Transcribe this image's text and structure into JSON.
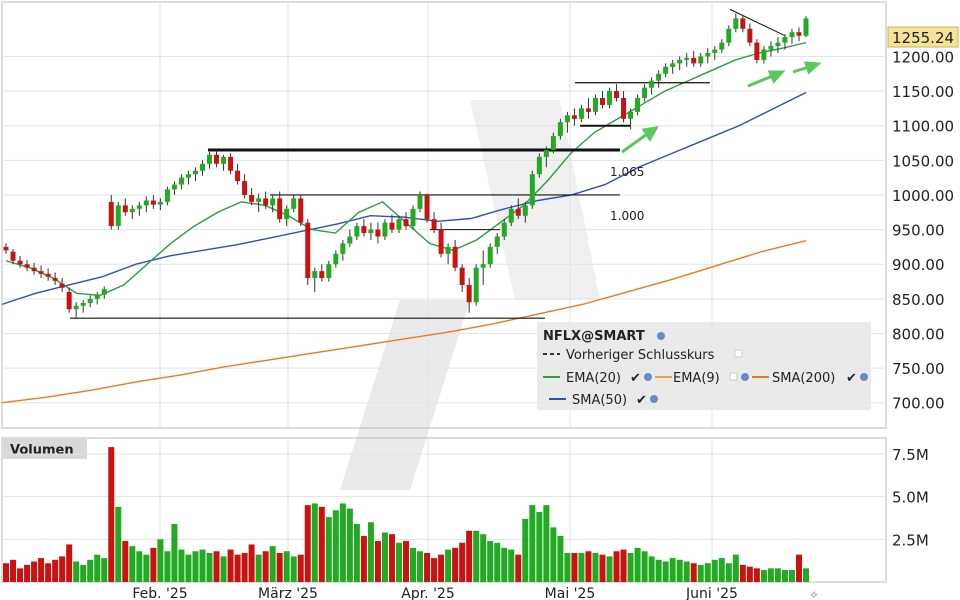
{
  "chart_data": [
    {
      "type": "candlestick",
      "title": "NFLX@SMART",
      "ylim": [
        675,
        1270
      ],
      "y_ticks": [
        "700.00",
        "750.00",
        "800.00",
        "850.00",
        "900.00",
        "950.00",
        "1000.00",
        "1050.00",
        "1100.00",
        "1150.00",
        "1200.00"
      ],
      "y_tick_values": [
        700,
        750,
        800,
        850,
        900,
        950,
        1000,
        1050,
        1100,
        1150,
        1200
      ],
      "last_price_label": "1255.24",
      "last_price": 1255.24,
      "x_labels": [
        "Feb. '25",
        "März '25",
        "Apr. '25",
        "Mai '25",
        "Juni '25"
      ],
      "legend": {
        "title": "NFLX@SMART",
        "items": [
          {
            "name": "Vorheriger Schlusskurs",
            "color": "#333333",
            "style": "dashed"
          },
          {
            "name": "EMA(20)",
            "color": "#2e9e3e"
          },
          {
            "name": "EMA(9)",
            "color": "#f0a040"
          },
          {
            "name": "SMA(200)",
            "color": "#f07820"
          },
          {
            "name": "SMA(50)",
            "color": "#2f4fbf"
          }
        ]
      },
      "annotations": [
        {
          "text": "1.065",
          "level": 1065
        },
        {
          "text": "1.000",
          "level": 1000
        }
      ],
      "horizontal_levels": [
        822,
        1000,
        1065,
        1160,
        1100
      ],
      "candles": [
        [
          925,
          930,
          915,
          920
        ],
        [
          918,
          922,
          900,
          905
        ],
        [
          905,
          912,
          895,
          900
        ],
        [
          900,
          906,
          890,
          895
        ],
        [
          895,
          902,
          885,
          890
        ],
        [
          890,
          898,
          880,
          886
        ],
        [
          886,
          894,
          876,
          882
        ],
        [
          880,
          888,
          870,
          876
        ],
        [
          872,
          880,
          860,
          866
        ],
        [
          860,
          866,
          830,
          835
        ],
        [
          835,
          845,
          822,
          840
        ],
        [
          840,
          848,
          830,
          844
        ],
        [
          844,
          855,
          838,
          850
        ],
        [
          850,
          860,
          842,
          856
        ],
        [
          856,
          868,
          850,
          864
        ],
        [
          990,
          1000,
          950,
          955
        ],
        [
          955,
          990,
          950,
          985
        ],
        [
          985,
          995,
          970,
          975
        ],
        [
          975,
          985,
          965,
          980
        ],
        [
          980,
          990,
          970,
          985
        ],
        [
          985,
          998,
          975,
          992
        ],
        [
          992,
          1000,
          980,
          986
        ],
        [
          986,
          995,
          978,
          990
        ],
        [
          990,
          1012,
          985,
          1008
        ],
        [
          1008,
          1020,
          1000,
          1015
        ],
        [
          1015,
          1030,
          1008,
          1025
        ],
        [
          1025,
          1035,
          1015,
          1030
        ],
        [
          1030,
          1040,
          1020,
          1035
        ],
        [
          1035,
          1050,
          1028,
          1045
        ],
        [
          1045,
          1062,
          1038,
          1058
        ],
        [
          1058,
          1065,
          1040,
          1045
        ],
        [
          1045,
          1058,
          1035,
          1055
        ],
        [
          1055,
          1060,
          1030,
          1035
        ],
        [
          1035,
          1045,
          1015,
          1020
        ],
        [
          1020,
          1030,
          995,
          1000
        ],
        [
          1000,
          1010,
          985,
          990
        ],
        [
          990,
          1002,
          975,
          995
        ],
        [
          995,
          1005,
          980,
          985
        ],
        [
          985,
          1000,
          975,
          995
        ],
        [
          995,
          1005,
          960,
          965
        ],
        [
          965,
          985,
          955,
          980
        ],
        [
          980,
          1000,
          975,
          995
        ],
        [
          995,
          1000,
          955,
          960
        ],
        [
          960,
          965,
          870,
          880
        ],
        [
          880,
          895,
          860,
          890
        ],
        [
          890,
          900,
          875,
          880
        ],
        [
          880,
          905,
          875,
          900
        ],
        [
          900,
          920,
          895,
          915
        ],
        [
          915,
          935,
          905,
          930
        ],
        [
          930,
          950,
          925,
          940
        ],
        [
          940,
          960,
          935,
          955
        ],
        [
          955,
          965,
          940,
          945
        ],
        [
          945,
          960,
          935,
          950
        ],
        [
          950,
          960,
          930,
          940
        ],
        [
          940,
          965,
          935,
          960
        ],
        [
          960,
          972,
          945,
          950
        ],
        [
          950,
          970,
          945,
          965
        ],
        [
          965,
          975,
          950,
          955
        ],
        [
          955,
          985,
          950,
          980
        ],
        [
          980,
          1005,
          975,
          1000
        ],
        [
          1000,
          1002,
          960,
          965
        ],
        [
          965,
          975,
          945,
          950
        ],
        [
          950,
          960,
          910,
          915
        ],
        [
          915,
          930,
          900,
          925
        ],
        [
          925,
          935,
          890,
          895
        ],
        [
          895,
          900,
          860,
          870
        ],
        [
          870,
          880,
          830,
          845
        ],
        [
          845,
          900,
          840,
          895
        ],
        [
          895,
          920,
          870,
          900
        ],
        [
          900,
          930,
          895,
          925
        ],
        [
          925,
          945,
          915,
          940
        ],
        [
          940,
          965,
          935,
          960
        ],
        [
          960,
          985,
          955,
          980
        ],
        [
          980,
          995,
          965,
          970
        ],
        [
          970,
          990,
          960,
          985
        ],
        [
          985,
          1035,
          980,
          1030
        ],
        [
          1030,
          1060,
          1025,
          1055
        ],
        [
          1055,
          1070,
          1040,
          1065
        ],
        [
          1065,
          1090,
          1060,
          1085
        ],
        [
          1085,
          1110,
          1080,
          1105
        ],
        [
          1105,
          1120,
          1090,
          1115
        ],
        [
          1115,
          1125,
          1100,
          1110
        ],
        [
          1110,
          1130,
          1105,
          1125
        ],
        [
          1125,
          1140,
          1110,
          1120
        ],
        [
          1120,
          1145,
          1115,
          1140
        ],
        [
          1140,
          1150,
          1125,
          1130
        ],
        [
          1130,
          1155,
          1125,
          1150
        ],
        [
          1150,
          1160,
          1135,
          1140
        ],
        [
          1140,
          1150,
          1105,
          1110
        ],
        [
          1110,
          1125,
          1095,
          1120
        ],
        [
          1120,
          1145,
          1115,
          1140
        ],
        [
          1140,
          1160,
          1135,
          1155
        ],
        [
          1155,
          1170,
          1145,
          1165
        ],
        [
          1165,
          1180,
          1155,
          1175
        ],
        [
          1175,
          1190,
          1170,
          1185
        ],
        [
          1185,
          1195,
          1175,
          1190
        ],
        [
          1190,
          1200,
          1180,
          1195
        ],
        [
          1195,
          1205,
          1185,
          1198
        ],
        [
          1198,
          1208,
          1185,
          1190
        ],
        [
          1190,
          1205,
          1185,
          1200
        ],
        [
          1200,
          1212,
          1190,
          1205
        ],
        [
          1205,
          1215,
          1195,
          1210
        ],
        [
          1210,
          1225,
          1205,
          1220
        ],
        [
          1220,
          1245,
          1215,
          1240
        ],
        [
          1240,
          1262,
          1235,
          1255
        ],
        [
          1255,
          1260,
          1235,
          1240
        ],
        [
          1240,
          1248,
          1215,
          1220
        ],
        [
          1220,
          1225,
          1190,
          1195
        ],
        [
          1195,
          1215,
          1190,
          1210
        ],
        [
          1210,
          1222,
          1200,
          1215
        ],
        [
          1215,
          1228,
          1205,
          1220
        ],
        [
          1220,
          1232,
          1210,
          1228
        ],
        [
          1228,
          1240,
          1218,
          1235
        ],
        [
          1235,
          1242,
          1222,
          1230
        ],
        [
          1230,
          1258,
          1228,
          1255
        ]
      ],
      "series": [
        {
          "name": "SMA(200)",
          "color": "#f07820",
          "points": [
            700,
            708,
            718,
            730,
            740,
            752,
            762,
            772,
            782,
            792,
            802,
            814,
            828,
            842,
            860,
            878,
            898,
            918,
            934
          ]
        },
        {
          "name": "SMA(50)",
          "color": "#2f4fbf",
          "points": [
            842,
            858,
            870,
            882,
            900,
            912,
            920,
            928,
            938,
            948,
            958,
            970,
            968,
            962,
            966,
            980,
            992,
            1000,
            1015,
            1040,
            1060,
            1080,
            1100,
            1124,
            1148
          ]
        },
        {
          "name": "EMA(20)",
          "color": "#2e9e3e",
          "points": [
            905,
            895,
            880,
            858,
            855,
            870,
            900,
            930,
            955,
            975,
            990,
            985,
            970,
            950,
            945,
            975,
            990,
            960,
            930,
            920,
            935,
            960,
            985,
            1020,
            1060,
            1090,
            1110,
            1130,
            1150,
            1165,
            1180,
            1195,
            1205,
            1212,
            1220
          ]
        }
      ]
    },
    {
      "type": "bar",
      "title": "Volumen",
      "y_ticks": [
        "2.5M",
        "5.0M",
        "7.5M"
      ],
      "y_tick_values": [
        2.5,
        5.0,
        7.5
      ],
      "ylim": [
        0,
        8.2
      ],
      "values": [
        1.1,
        1.3,
        0.8,
        1.0,
        1.2,
        1.4,
        1.1,
        1.3,
        1.5,
        2.2,
        1.2,
        1.0,
        1.3,
        1.6,
        1.4,
        7.9,
        4.4,
        2.4,
        2.1,
        1.8,
        1.6,
        2.0,
        2.5,
        1.8,
        3.4,
        1.9,
        1.6,
        1.8,
        1.9,
        1.7,
        1.8,
        1.5,
        1.9,
        1.6,
        1.7,
        2.2,
        1.6,
        1.8,
        2.1,
        1.7,
        1.8,
        1.5,
        1.6,
        4.5,
        4.6,
        4.4,
        3.8,
        4.2,
        4.6,
        4.3,
        3.4,
        2.7,
        3.5,
        2.4,
        2.9,
        2.8,
        2.3,
        2.4,
        2.0,
        1.8,
        1.7,
        1.4,
        1.6,
        1.9,
        2.0,
        2.3,
        3.0,
        3.0,
        2.8,
        2.4,
        2.3,
        2.0,
        1.9,
        1.6,
        3.7,
        4.5,
        4.1,
        4.5,
        3.2,
        2.7,
        1.7,
        1.7,
        1.7,
        1.8,
        1.7,
        1.6,
        1.5,
        1.8,
        1.9,
        1.7,
        2.0,
        1.8,
        1.5,
        1.3,
        1.2,
        1.4,
        1.3,
        1.2,
        1.1,
        1.0,
        1.1,
        1.3,
        1.4,
        1.1,
        1.6,
        1.0,
        0.9,
        0.8,
        0.7,
        0.8,
        0.8,
        0.7,
        0.7,
        1.6,
        0.8
      ],
      "colors_up": "#22aa22",
      "colors_down": "#cc1111"
    }
  ],
  "ui": {
    "volume_panel_label": "Volumen",
    "legend_prev_close": "Vorheriger Schlusskurs",
    "legend_ema20": "EMA(20)",
    "legend_ema9": "EMA(9)",
    "legend_sma200": "SMA(200)",
    "legend_sma50": "SMA(50)"
  }
}
